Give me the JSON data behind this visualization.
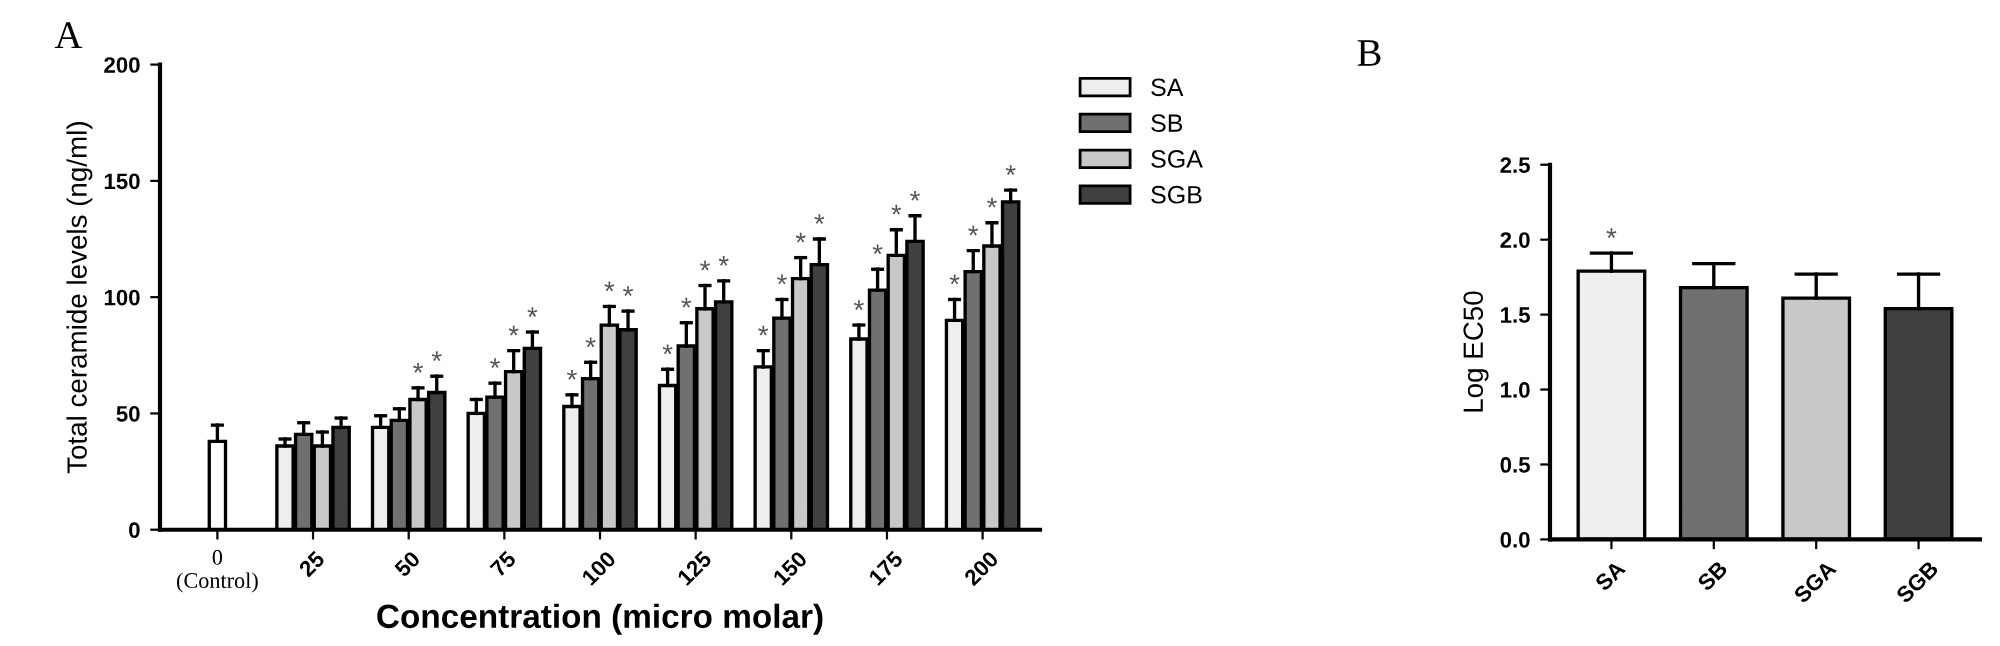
{
  "chart_data": [
    {
      "type": "bar",
      "title": "A",
      "xlabel": "Concentration (micro molar)",
      "ylabel": "Total ceramide levels (ng/ml)",
      "categories": [
        "0\n(Control)",
        "25",
        "50",
        "75",
        "100",
        "125",
        "150",
        "175",
        "200"
      ],
      "ylim": [
        0,
        200
      ],
      "yticks": [
        0,
        50,
        100,
        150,
        200
      ],
      "grid": false,
      "legend": "top right",
      "series": [
        {
          "color": "#ffffff",
          "values": [
            38,
            null,
            null,
            null,
            null,
            null,
            null,
            null,
            null
          ],
          "errors": [
            [
              38,
              45
            ],
            null,
            null,
            null,
            null,
            null,
            null,
            null,
            null
          ]
        },
        {
          "name": "SA",
          "color": "#eeeeee",
          "values": [
            null,
            36,
            44,
            50,
            53,
            62,
            70,
            82,
            90
          ],
          "errors": [
            null,
            [
              36,
              39
            ],
            [
              44,
              49
            ],
            [
              50,
              56
            ],
            [
              53,
              58
            ],
            [
              62,
              69
            ],
            [
              70,
              77
            ],
            [
              82,
              88
            ],
            [
              90,
              99
            ]
          ],
          "value_labels": [
            null,
            null,
            null,
            null,
            "*",
            "*",
            "*",
            "*",
            "*"
          ]
        },
        {
          "name": "SB",
          "color": "#707070",
          "values": [
            null,
            41,
            47,
            57,
            65,
            79,
            91,
            103,
            111
          ],
          "errors": [
            null,
            [
              41,
              46
            ],
            [
              47,
              52
            ],
            [
              57,
              63
            ],
            [
              65,
              72
            ],
            [
              79,
              89
            ],
            [
              91,
              99
            ],
            [
              103,
              112
            ],
            [
              111,
              120
            ]
          ],
          "value_labels": [
            null,
            null,
            null,
            "*",
            "*",
            "*",
            "*",
            "*",
            "*"
          ]
        },
        {
          "name": "SGA",
          "color": "#c8c8c8",
          "values": [
            null,
            36,
            56,
            68,
            88,
            95,
            108,
            118,
            122
          ],
          "errors": [
            null,
            [
              36,
              42
            ],
            [
              56,
              61
            ],
            [
              68,
              77
            ],
            [
              88,
              96
            ],
            [
              95,
              105
            ],
            [
              108,
              117
            ],
            [
              118,
              129
            ],
            [
              122,
              132
            ]
          ],
          "value_labels": [
            null,
            null,
            "*",
            "*",
            "*",
            "*",
            "*",
            "*",
            "*"
          ]
        },
        {
          "name": "SGB",
          "color": "#404040",
          "values": [
            null,
            44,
            59,
            78,
            86,
            98,
            114,
            124,
            141
          ],
          "errors": [
            null,
            [
              44,
              48
            ],
            [
              59,
              66
            ],
            [
              78,
              85
            ],
            [
              86,
              94
            ],
            [
              98,
              107
            ],
            [
              114,
              125
            ],
            [
              124,
              135
            ],
            [
              141,
              146
            ]
          ],
          "value_labels": [
            null,
            null,
            "*",
            "*",
            "*",
            "*",
            "*",
            "*",
            "*"
          ]
        }
      ]
    },
    {
      "type": "bar",
      "title": "B",
      "ylabel": "Log EC50",
      "categories": [
        "SA",
        "SB",
        "SGA",
        "SGB"
      ],
      "ylim": [
        0,
        2.5
      ],
      "yticks": [
        {
          "value": 0,
          "label": "0.0"
        },
        0.5,
        {
          "value": 1,
          "label": "1.0"
        },
        1.5,
        {
          "value": 2,
          "label": "2.0"
        },
        2.5
      ],
      "grid": false,
      "series": [
        {
          "colors": [
            "#eeeeee",
            "#707070",
            "#c8c8c8",
            "#404040"
          ],
          "values": [
            1.79,
            1.68,
            1.61,
            1.54
          ],
          "errors": [
            [
              1.79,
              1.91
            ],
            [
              1.68,
              1.84
            ],
            [
              1.61,
              1.77
            ],
            [
              1.54,
              1.77
            ]
          ],
          "value_labels": [
            "*",
            null,
            null,
            null
          ]
        }
      ]
    }
  ]
}
